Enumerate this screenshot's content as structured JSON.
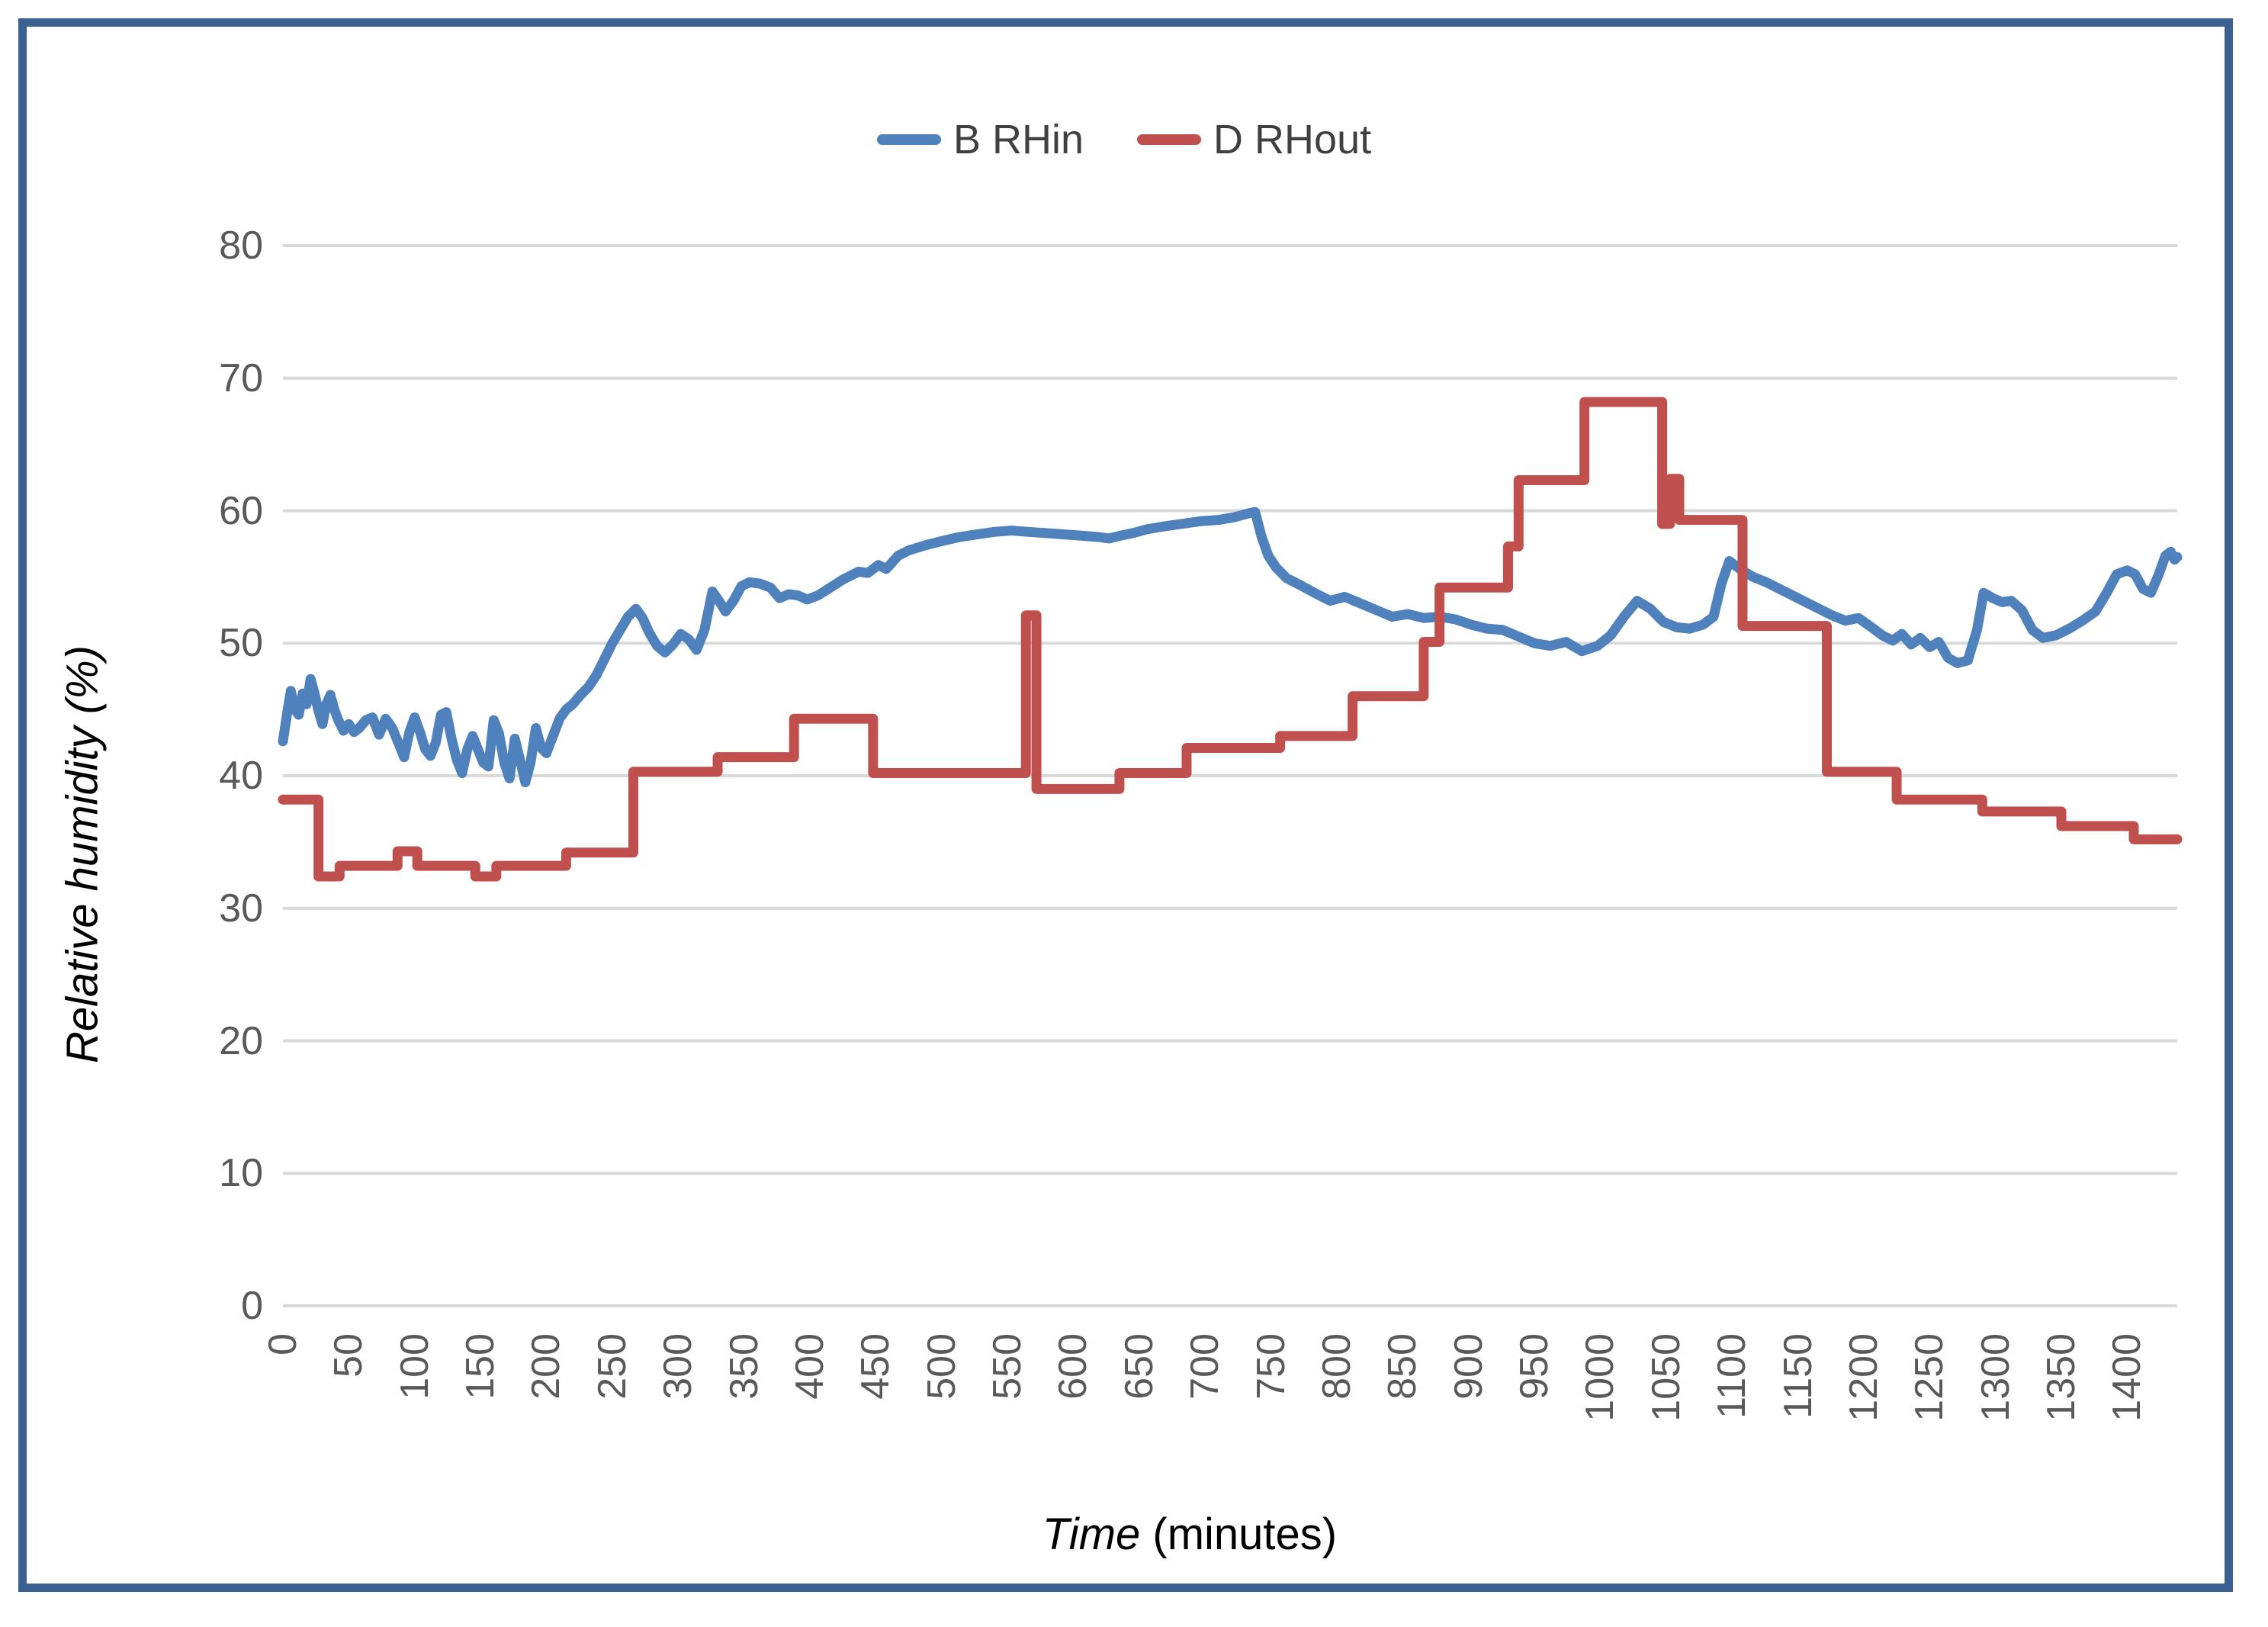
{
  "legend": {
    "items": [
      {
        "label": "B RHin",
        "color": "#4f81bd"
      },
      {
        "label": "D RHout",
        "color": "#c0504d"
      }
    ]
  },
  "axes": {
    "y": {
      "title": "Relative humidity (%)",
      "tick_labels": [
        "0",
        "10",
        "20",
        "30",
        "40",
        "50",
        "60",
        "70",
        "80"
      ]
    },
    "x": {
      "title_em": "Time",
      "title_rest": " (minutes)",
      "tick_labels": [
        "0",
        "50",
        "100",
        "150",
        "200",
        "250",
        "300",
        "350",
        "400",
        "450",
        "500",
        "550",
        "600",
        "650",
        "700",
        "750",
        "800",
        "850",
        "900",
        "950",
        "1000",
        "1050",
        "1100",
        "1150",
        "1200",
        "1250",
        "1300",
        "1350",
        "1400"
      ]
    }
  },
  "colors": {
    "gridline": "#d9d9d9",
    "tick_text": "#595959",
    "frame_border": "#3a6191",
    "series_blue": "#4f81bd",
    "series_red": "#c0504d"
  },
  "chart_data": {
    "type": "line",
    "title": "",
    "xlabel": "Time (minutes)",
    "ylabel": "Relative humidity (%)",
    "xlim": [
      0,
      1438
    ],
    "ylim": [
      0,
      80
    ],
    "ytick_step": 10,
    "xtick_step": 50,
    "grid": "horizontal",
    "legend_position": "top-center",
    "series": [
      {
        "name": "B RHin",
        "color": "#4f81bd",
        "interpolation": "linear",
        "x": [
          0,
          3,
          6,
          9,
          12,
          15,
          18,
          21,
          24,
          27,
          30,
          33,
          36,
          39,
          42,
          46,
          50,
          54,
          58,
          63,
          68,
          73,
          78,
          83,
          88,
          92,
          96,
          100,
          104,
          108,
          112,
          116,
          120,
          124,
          128,
          132,
          136,
          140,
          144,
          148,
          152,
          156,
          160,
          164,
          168,
          172,
          176,
          180,
          184,
          188,
          192,
          196,
          200,
          205,
          210,
          215,
          220,
          226,
          232,
          238,
          244,
          250,
          256,
          262,
          268,
          273,
          278,
          284,
          290,
          296,
          302,
          308,
          314,
          320,
          326,
          331,
          336,
          342,
          348,
          354,
          362,
          370,
          377,
          384,
          391,
          398,
          406,
          414,
          425,
          437,
          444,
          452,
          458,
          467,
          475,
          488,
          500,
          513,
          526,
          540,
          553,
          566,
          580,
          594,
          608,
          620,
          627,
          635,
          645,
          656,
          668,
          682,
          696,
          710,
          722,
          733,
          738,
          743,
          748,
          754,
          762,
          772,
          783,
          795,
          806,
          818,
          830,
          842,
          854,
          866,
          878,
          890,
          902,
          914,
          926,
          938,
          950,
          962,
          974,
          986,
          998,
          1008,
          1018,
          1028,
          1038,
          1048,
          1058,
          1068,
          1078,
          1086,
          1092,
          1098,
          1106,
          1116,
          1126,
          1136,
          1146,
          1156,
          1166,
          1176,
          1186,
          1196,
          1206,
          1214,
          1222,
          1229,
          1236,
          1243,
          1250,
          1257,
          1264,
          1271,
          1279,
          1286,
          1291,
          1298,
          1305,
          1312,
          1320,
          1328,
          1336,
          1346,
          1356,
          1366,
          1376,
          1385,
          1392,
          1400,
          1406,
          1412,
          1418,
          1424,
          1429,
          1433,
          1436,
          1438
        ],
        "y": [
          42.6,
          44.6,
          46.4,
          45.0,
          44.6,
          46.2,
          45.4,
          47.3,
          46.2,
          44.9,
          43.9,
          45.4,
          46.1,
          45.0,
          44.2,
          43.4,
          43.9,
          43.3,
          43.6,
          44.2,
          44.4,
          43.1,
          44.3,
          43.6,
          42.4,
          41.4,
          43.3,
          44.4,
          43.3,
          42.0,
          41.5,
          42.5,
          44.6,
          44.8,
          42.8,
          41.2,
          40.2,
          42.0,
          43.0,
          42.0,
          41.0,
          40.7,
          44.2,
          43.2,
          41.0,
          39.8,
          42.8,
          41.2,
          39.5,
          41.0,
          43.6,
          42.1,
          41.7,
          43.0,
          44.3,
          45.0,
          45.4,
          46.1,
          46.7,
          47.6,
          48.8,
          50.0,
          51.0,
          52.0,
          52.6,
          51.9,
          50.8,
          49.8,
          49.3,
          49.9,
          50.7,
          50.3,
          49.5,
          51.0,
          53.9,
          53.2,
          52.4,
          53.2,
          54.3,
          54.6,
          54.5,
          54.2,
          53.4,
          53.7,
          53.6,
          53.3,
          53.6,
          54.1,
          54.8,
          55.4,
          55.3,
          55.9,
          55.6,
          56.6,
          57.0,
          57.4,
          57.7,
          58.0,
          58.2,
          58.4,
          58.5,
          58.4,
          58.3,
          58.2,
          58.1,
          58.0,
          57.9,
          58.1,
          58.3,
          58.6,
          58.8,
          59.0,
          59.2,
          59.3,
          59.5,
          59.8,
          59.9,
          58.0,
          56.6,
          55.7,
          54.9,
          54.4,
          53.8,
          53.2,
          53.5,
          53.0,
          52.5,
          52.0,
          52.2,
          51.9,
          52.0,
          51.8,
          51.4,
          51.1,
          51.0,
          50.5,
          50.0,
          49.8,
          50.1,
          49.4,
          49.8,
          50.6,
          52.0,
          53.2,
          52.6,
          51.6,
          51.2,
          51.1,
          51.4,
          52.0,
          54.5,
          56.2,
          55.6,
          55.0,
          54.6,
          54.1,
          53.6,
          53.1,
          52.6,
          52.1,
          51.7,
          51.9,
          51.2,
          50.6,
          50.2,
          50.7,
          49.9,
          50.4,
          49.7,
          50.1,
          48.9,
          48.5,
          48.7,
          51.0,
          53.8,
          53.4,
          53.1,
          53.2,
          52.5,
          51.0,
          50.4,
          50.6,
          51.1,
          51.7,
          52.4,
          53.9,
          55.2,
          55.5,
          55.2,
          54.1,
          53.8,
          55.2,
          56.6,
          56.9,
          56.3,
          56.5
        ]
      },
      {
        "name": "D RHout",
        "color": "#c0504d",
        "interpolation": "step-after",
        "x": [
          0,
          27,
          43,
          87,
          102,
          146,
          162,
          215,
          266,
          330,
          388,
          448,
          564,
          572,
          635,
          686,
          757,
          812,
          866,
          878,
          930,
          938,
          988,
          1047,
          1053,
          1060,
          1108,
          1172,
          1225,
          1290,
          1350,
          1405
        ],
        "y": [
          38.2,
          32.4,
          33.2,
          34.3,
          33.2,
          32.4,
          33.2,
          34.2,
          40.3,
          41.4,
          44.3,
          40.2,
          52.1,
          39.0,
          40.2,
          42.1,
          43.0,
          46.0,
          50.1,
          54.2,
          57.3,
          62.3,
          68.2,
          59.0,
          62.4,
          59.3,
          51.3,
          40.3,
          38.2,
          37.3,
          36.2,
          35.2
        ],
        "x_end": 1438
      }
    ]
  }
}
